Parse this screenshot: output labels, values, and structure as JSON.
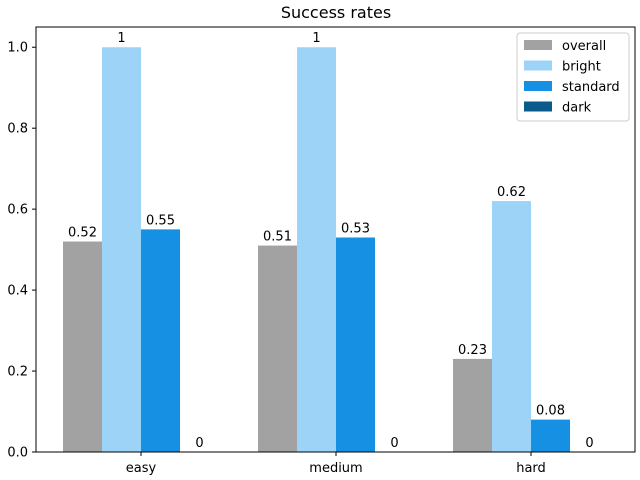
{
  "chart_data": {
    "type": "bar",
    "title": "Success rates",
    "xlabel": "",
    "ylabel": "",
    "categories": [
      "easy",
      "medium",
      "hard"
    ],
    "series": [
      {
        "name": "overall",
        "color": "#a2a2a2",
        "values": [
          0.52,
          0.51,
          0.23
        ],
        "labels": [
          "0.52",
          "0.51",
          "0.23"
        ]
      },
      {
        "name": "bright",
        "color": "#9dd3f6",
        "values": [
          1.0,
          1.0,
          0.62
        ],
        "labels": [
          "1",
          "1",
          "0.62"
        ]
      },
      {
        "name": "standard",
        "color": "#1690e3",
        "values": [
          0.55,
          0.53,
          0.08
        ],
        "labels": [
          "0.55",
          "0.53",
          "0.08"
        ]
      },
      {
        "name": "dark",
        "color": "#0b5a8c",
        "values": [
          0,
          0,
          0
        ],
        "labels": [
          "0",
          "0",
          "0"
        ]
      }
    ],
    "ylim": [
      0,
      1.05
    ],
    "yticks": [
      0.0,
      0.2,
      0.4,
      0.6,
      0.8,
      1.0
    ],
    "ytick_labels": [
      "0.0",
      "0.2",
      "0.4",
      "0.6",
      "0.8",
      "1.0"
    ],
    "grid": false,
    "legend_position": "top-right"
  }
}
